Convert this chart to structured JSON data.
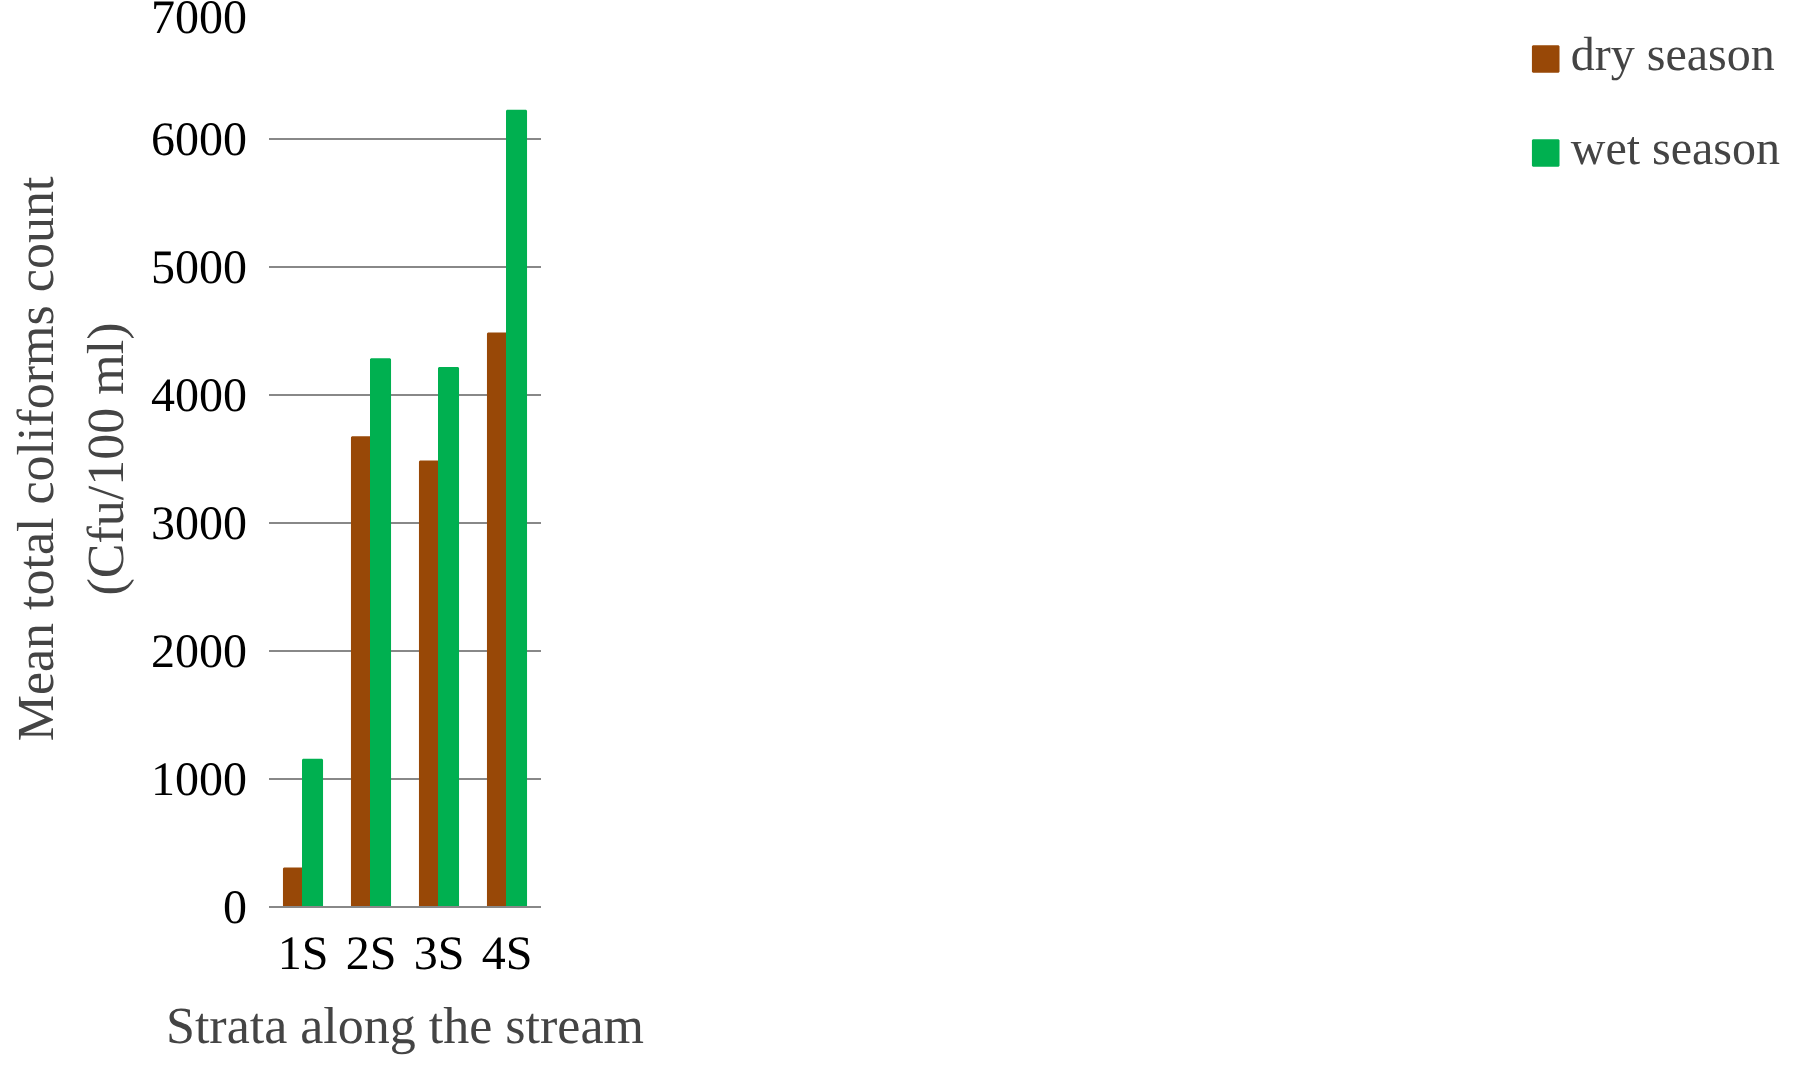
{
  "chart_data": {
    "type": "bar",
    "xlabel": "Strata along the stream",
    "ylabel": "Mean total coliforms count\n(Cfu/100 ml)",
    "categories": [
      "1S",
      "2S",
      "3S",
      "4S"
    ],
    "series": [
      {
        "name": "dry season",
        "color": "#984807",
        "values": [
          300,
          3670,
          3480,
          4480
        ]
      },
      {
        "name": "wet season",
        "color": "#00b050",
        "values": [
          1150,
          4280,
          4210,
          6220
        ]
      }
    ],
    "ylim": [
      0,
      7000
    ],
    "yticks": [
      0,
      1000,
      2000,
      3000,
      4000,
      5000,
      6000,
      7000
    ],
    "grid": "y",
    "legend": "right"
  }
}
